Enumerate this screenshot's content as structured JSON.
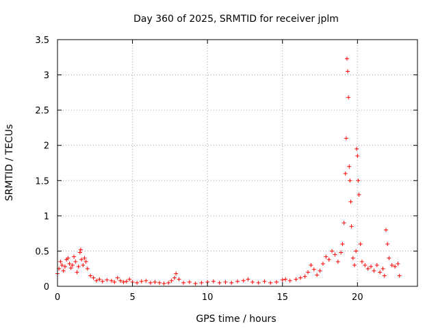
{
  "chart_data": {
    "type": "scatter",
    "title": "Day 360 of 2025, SRMTID for receiver jplm",
    "xlabel": "GPS time / hours",
    "ylabel": "SRMTID / TECUs",
    "xlim": [
      0,
      24
    ],
    "ylim": [
      0,
      3.5
    ],
    "x_ticks": [
      0,
      5,
      10,
      15,
      20
    ],
    "x_tick_labels": [
      "0",
      "5",
      "10",
      "15",
      "20"
    ],
    "y_ticks": [
      0,
      0.5,
      1,
      1.5,
      2,
      2.5,
      3,
      3.5
    ],
    "y_tick_labels": [
      "0",
      "0.5",
      "1",
      "1.5",
      "2",
      "2.5",
      "3",
      "3.5"
    ],
    "grid": true,
    "marker": "plus",
    "colors": {
      "points": "#ff0000",
      "grid": "#a0a0a0",
      "axes": "#000000"
    },
    "series": [
      {
        "name": "SRMTID",
        "x": [
          0.0,
          0.1,
          0.2,
          0.3,
          0.4,
          0.5,
          0.6,
          0.7,
          0.8,
          0.9,
          1.0,
          1.1,
          1.2,
          1.3,
          1.4,
          1.5,
          1.55,
          1.6,
          1.7,
          1.8,
          1.9,
          2.0,
          2.2,
          2.4,
          2.6,
          2.8,
          3.0,
          3.3,
          3.6,
          3.8,
          4.0,
          4.2,
          4.4,
          4.6,
          4.8,
          5.0,
          5.3,
          5.6,
          5.9,
          6.2,
          6.5,
          6.8,
          7.1,
          7.4,
          7.6,
          7.8,
          7.9,
          8.1,
          8.4,
          8.8,
          9.2,
          9.6,
          10.0,
          10.4,
          10.8,
          11.2,
          11.6,
          12.0,
          12.4,
          12.7,
          13.0,
          13.4,
          13.8,
          14.2,
          14.6,
          15.0,
          15.2,
          15.5,
          15.9,
          16.2,
          16.5,
          16.7,
          16.9,
          17.1,
          17.3,
          17.5,
          17.7,
          17.9,
          18.1,
          18.3,
          18.5,
          18.7,
          18.9,
          19.0,
          19.1,
          19.2,
          19.25,
          19.3,
          19.35,
          19.4,
          19.45,
          19.5,
          19.55,
          19.6,
          19.7,
          19.8,
          19.9,
          19.95,
          20.0,
          20.05,
          20.1,
          20.2,
          20.3,
          20.5,
          20.7,
          20.9,
          21.1,
          21.3,
          21.5,
          21.7,
          21.8,
          21.9,
          22.0,
          22.1,
          22.3,
          22.5,
          22.7,
          22.8
        ],
        "y": [
          0.18,
          0.25,
          0.35,
          0.3,
          0.22,
          0.28,
          0.38,
          0.4,
          0.32,
          0.26,
          0.3,
          0.42,
          0.35,
          0.2,
          0.28,
          0.48,
          0.52,
          0.38,
          0.3,
          0.4,
          0.35,
          0.25,
          0.15,
          0.12,
          0.08,
          0.1,
          0.07,
          0.09,
          0.08,
          0.06,
          0.12,
          0.08,
          0.06,
          0.07,
          0.1,
          0.06,
          0.05,
          0.07,
          0.08,
          0.05,
          0.06,
          0.05,
          0.04,
          0.05,
          0.08,
          0.12,
          0.18,
          0.1,
          0.05,
          0.06,
          0.04,
          0.05,
          0.06,
          0.07,
          0.05,
          0.06,
          0.05,
          0.07,
          0.08,
          0.1,
          0.06,
          0.05,
          0.07,
          0.05,
          0.06,
          0.09,
          0.1,
          0.08,
          0.1,
          0.12,
          0.14,
          0.2,
          0.3,
          0.24,
          0.16,
          0.22,
          0.32,
          0.42,
          0.38,
          0.5,
          0.45,
          0.35,
          0.48,
          0.6,
          0.9,
          1.6,
          2.1,
          3.23,
          3.05,
          2.68,
          1.7,
          1.5,
          1.2,
          0.85,
          0.4,
          0.3,
          0.5,
          1.95,
          1.85,
          1.5,
          1.3,
          0.6,
          0.35,
          0.3,
          0.25,
          0.28,
          0.22,
          0.3,
          0.2,
          0.25,
          0.15,
          0.8,
          0.6,
          0.4,
          0.3,
          0.28,
          0.32,
          0.15
        ]
      }
    ]
  }
}
